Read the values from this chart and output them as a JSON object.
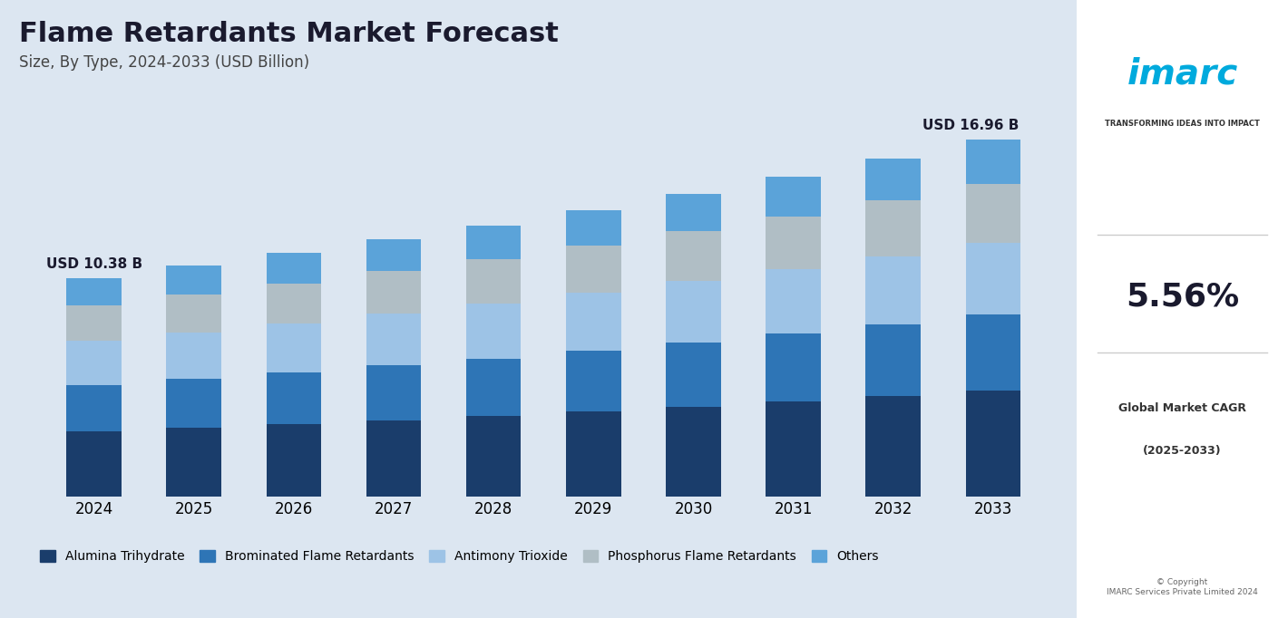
{
  "title": "Flame Retardants Market Forecast",
  "subtitle": "Size, By Type, 2024-2033 (USD Billion)",
  "years": [
    2024,
    2025,
    2026,
    2027,
    2028,
    2029,
    2030,
    2031,
    2032,
    2033
  ],
  "series": {
    "Alumina Trihydrate": [
      3.1,
      3.27,
      3.45,
      3.64,
      3.84,
      4.06,
      4.29,
      4.53,
      4.78,
      5.06
    ],
    "Brominated Flame Retardants": [
      2.2,
      2.32,
      2.45,
      2.59,
      2.73,
      2.88,
      3.04,
      3.21,
      3.39,
      3.58
    ],
    "Antimony Trioxide": [
      2.1,
      2.22,
      2.34,
      2.47,
      2.61,
      2.76,
      2.91,
      3.07,
      3.25,
      3.43
    ],
    "Phosphorus Flame Retardants": [
      1.7,
      1.8,
      1.9,
      2.01,
      2.12,
      2.24,
      2.37,
      2.5,
      2.64,
      2.79
    ],
    "Others": [
      1.28,
      1.35,
      1.43,
      1.51,
      1.59,
      1.68,
      1.78,
      1.88,
      1.98,
      2.1
    ]
  },
  "colors": {
    "Alumina Trihydrate": "#1a3d6b",
    "Brominated Flame Retardants": "#2e75b6",
    "Antimony Trioxide": "#9dc3e6",
    "Phosphorus Flame Retardants": "#b0bec5",
    "Others": "#5ba3d9"
  },
  "label_2024": "USD 10.38 B",
  "label_2033": "USD 16.96 B",
  "background_color": "#dce6f1",
  "bar_width": 0.55,
  "ylim": [
    0,
    20
  ]
}
